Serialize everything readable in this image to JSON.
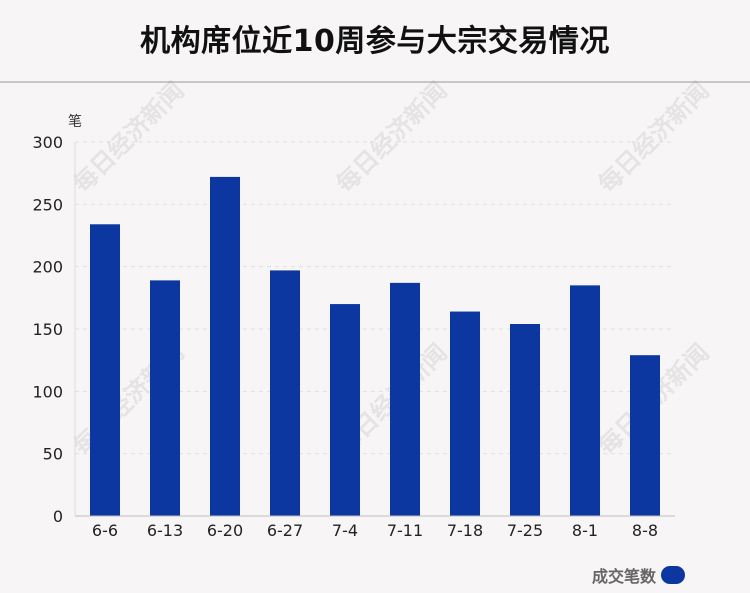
{
  "chart_data": {
    "type": "bar",
    "title": "机构席位近10周参与大宗交易情况",
    "ylabel": "笔",
    "xlabel": "",
    "categories": [
      "6-6",
      "6-13",
      "6-20",
      "6-27",
      "7-4",
      "7-11",
      "7-18",
      "7-25",
      "8-1",
      "8-8"
    ],
    "series": [
      {
        "name": "成交笔数",
        "values": [
          234,
          189,
          272,
          197,
          170,
          187,
          164,
          154,
          185,
          129
        ]
      }
    ],
    "ylim": [
      0,
      300
    ],
    "yticks": [
      "0",
      "50",
      "100",
      "150",
      "200",
      "250",
      "300"
    ],
    "grid": true,
    "legend_position": "bottom-right",
    "bar_color": "#0c36a0"
  },
  "watermark": "每日经济新闻"
}
